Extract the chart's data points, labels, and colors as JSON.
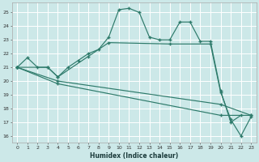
{
  "xlabel": "Humidex (Indice chaleur)",
  "bg_color": "#cce8e8",
  "line_color": "#2d7a6a",
  "grid_color": "#ffffff",
  "xlim": [
    -0.5,
    23.5
  ],
  "ylim": [
    15.5,
    25.7
  ],
  "xticks": [
    0,
    1,
    2,
    3,
    4,
    5,
    6,
    7,
    8,
    9,
    10,
    11,
    12,
    13,
    14,
    15,
    16,
    17,
    18,
    19,
    20,
    21,
    22,
    23
  ],
  "yticks": [
    16,
    17,
    18,
    19,
    20,
    21,
    22,
    23,
    24,
    25
  ],
  "s0x": [
    0,
    1,
    2,
    3,
    4,
    5,
    6,
    7,
    8,
    9,
    10,
    11,
    12,
    13,
    14,
    15,
    16,
    17,
    18,
    19,
    20,
    21,
    22
  ],
  "s0y": [
    21,
    21.7,
    21.0,
    21.0,
    20.3,
    21.0,
    21.5,
    22.0,
    22.3,
    23.2,
    25.2,
    25.3,
    25.0,
    23.2,
    23.0,
    23.0,
    24.3,
    24.3,
    22.9,
    22.9,
    19.3,
    17.0,
    17.5
  ],
  "s1x": [
    0,
    3,
    4,
    7,
    9,
    15,
    19,
    20,
    21,
    22,
    23
  ],
  "s1y": [
    21,
    21.0,
    20.3,
    21.8,
    22.8,
    22.7,
    22.7,
    19.2,
    17.2,
    16.0,
    17.4
  ],
  "s2x": [
    0,
    4,
    20,
    23
  ],
  "s2y": [
    21,
    20.0,
    18.3,
    17.5
  ],
  "s3x": [
    0,
    4,
    20,
    23
  ],
  "s3y": [
    21,
    19.8,
    17.5,
    17.5
  ]
}
